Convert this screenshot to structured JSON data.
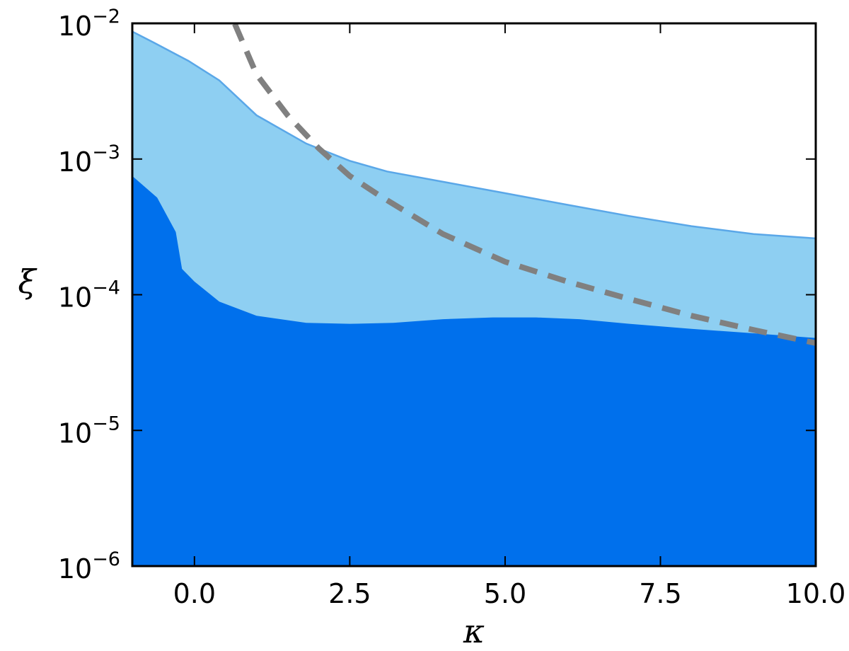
{
  "chart_data": {
    "type": "area",
    "xlabel": "κ",
    "ylabel": "ξ",
    "xlim": [
      -1.0,
      10.0
    ],
    "ylim": [
      1e-06,
      0.01
    ],
    "yscale": "log",
    "grid": false,
    "x_ticks": [
      {
        "value": 0.0,
        "label": "0.0"
      },
      {
        "value": 2.5,
        "label": "2.5"
      },
      {
        "value": 5.0,
        "label": "5.0"
      },
      {
        "value": 7.5,
        "label": "7.5"
      },
      {
        "value": 10.0,
        "label": "10.0"
      }
    ],
    "y_ticks": [
      {
        "value": 1e-06,
        "base": "10",
        "exp": "−6"
      },
      {
        "value": 1e-05,
        "base": "10",
        "exp": "−5"
      },
      {
        "value": 0.0001,
        "base": "10",
        "exp": "−4"
      },
      {
        "value": 0.001,
        "base": "10",
        "exp": "−3"
      },
      {
        "value": 0.01,
        "base": "10",
        "exp": "−2"
      }
    ],
    "series": [
      {
        "role": "upper-band",
        "color": "#8ecff2",
        "edge_color": "#5aa7e8",
        "x": [
          -1.0,
          -0.65,
          -0.1,
          0.4,
          1.0,
          1.8,
          2.5,
          3.1,
          4.0,
          5.0,
          6.0,
          7.0,
          8.0,
          9.0,
          10.0
        ],
        "y": [
          0.0087,
          0.0072,
          0.0053,
          0.0038,
          0.0021,
          0.0013,
          0.00097,
          0.00081,
          0.00068,
          0.00056,
          0.00046,
          0.00038,
          0.00032,
          0.00028,
          0.00026
        ]
      },
      {
        "role": "lower-band",
        "color": "#0070ec",
        "x": [
          -1.0,
          -0.6,
          -0.3,
          -0.2,
          0.0,
          0.4,
          1.0,
          1.8,
          2.5,
          3.2,
          4.0,
          4.8,
          5.5,
          6.2,
          7.0,
          8.0,
          9.0,
          10.0
        ],
        "y": [
          0.00075,
          0.00052,
          0.00029,
          0.000155,
          0.000125,
          8.9e-05,
          7e-05,
          6.2e-05,
          6.1e-05,
          6.2e-05,
          6.6e-05,
          6.8e-05,
          6.8e-05,
          6.6e-05,
          6.1e-05,
          5.6e-05,
          5.2e-05,
          4.8e-05
        ]
      },
      {
        "role": "dashed-curve",
        "color": "#808080",
        "style": "dashed",
        "x": [
          0.65,
          1.0,
          1.5,
          2.0,
          2.5,
          3.0,
          4.0,
          5.0,
          6.0,
          7.0,
          8.0,
          9.0,
          10.0
        ],
        "y": [
          0.0099,
          0.0042,
          0.0021,
          0.0012,
          0.00075,
          0.00053,
          0.00028,
          0.000175,
          0.000125,
          9.3e-05,
          7e-05,
          5.5e-05,
          4.4e-05
        ]
      }
    ]
  }
}
